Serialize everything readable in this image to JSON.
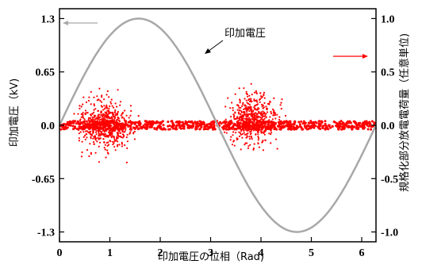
{
  "chart_data": {
    "type": "scatter",
    "title": "",
    "xlabel": "印加電圧の位相（Rad)",
    "ylabel_left": "印加電圧（kV)",
    "ylabel_right": "規格化部分放電電荷量（任意単位)",
    "xlim": [
      0,
      6.2832
    ],
    "ylim_left": [
      -1.42,
      1.42
    ],
    "ylim_right": [
      -1.0923,
      1.0923
    ],
    "x_ticks": [
      {
        "value": 0,
        "label": "0"
      },
      {
        "value": 1,
        "label": "1"
      },
      {
        "value": 2,
        "label": "2"
      },
      {
        "value": 3,
        "label": "3"
      },
      {
        "value": 4,
        "label": "4"
      },
      {
        "value": 5,
        "label": "5"
      },
      {
        "value": 6,
        "label": "6"
      }
    ],
    "y_ticks_left": [
      {
        "value": 1.3,
        "label": "1.3"
      },
      {
        "value": 0.65,
        "label": "0.65"
      },
      {
        "value": 0.0,
        "label": "0.0"
      },
      {
        "value": -0.65,
        "label": "-0.65"
      },
      {
        "value": -1.3,
        "label": "-1.3"
      }
    ],
    "y_ticks_right": [
      {
        "value": 1.0,
        "label": "1.0"
      },
      {
        "value": 0.5,
        "label": "0.5"
      },
      {
        "value": 0.0,
        "label": "0.0"
      },
      {
        "value": -0.5,
        "label": "-0.5"
      },
      {
        "value": -1.0,
        "label": "-1.0"
      }
    ],
    "grid": false,
    "series": [
      {
        "name": "印加電圧",
        "type": "line",
        "axis": "left",
        "color": "#a8a8a8",
        "function": "sine",
        "amplitude": 1.3,
        "x_range": [
          0,
          6.2832
        ]
      },
      {
        "name": "",
        "type": "scatter",
        "axis": "right",
        "color": "#ff0000",
        "clusters": [
          {
            "x_range": [
              0.0,
              6.28
            ],
            "y_range": [
              -0.04,
              0.04
            ],
            "density": "very dense",
            "note": "baseline band"
          },
          {
            "x_range": [
              0.0,
              2.0
            ],
            "y_range": [
              -0.75,
              0.48
            ],
            "peak_x": 0.9,
            "density": "dense"
          },
          {
            "x_range": [
              2.9,
              4.9
            ],
            "y_range": [
              -0.32,
              0.6
            ],
            "peak_x": 3.85,
            "density": "dense"
          }
        ]
      }
    ],
    "annotations": [
      {
        "text": "印加電圧",
        "points_to": "voltage curve"
      },
      {
        "text": "",
        "type": "arrow",
        "direction": "left",
        "color": "#a8a8a8",
        "meaning": "curve uses left axis"
      },
      {
        "text": "",
        "type": "arrow",
        "direction": "right",
        "color": "#ff0000",
        "meaning": "scatter uses right axis"
      }
    ]
  }
}
